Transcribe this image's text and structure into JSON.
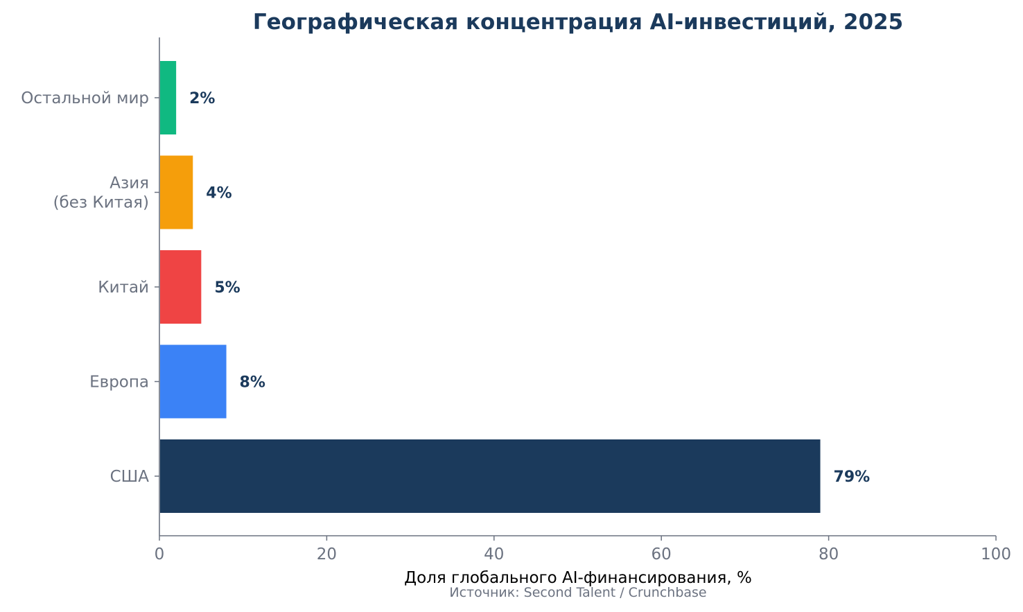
{
  "chart_data": {
    "type": "bar",
    "orientation": "horizontal",
    "title": "Географическая концентрация AI-инвестиций, 2025",
    "xlabel": "Доля глобального AI-финансирования, %",
    "ylabel": "",
    "source": "Источник: Second Talent / Crunchbase",
    "xlim": [
      0,
      100
    ],
    "xticks": [
      0,
      20,
      40,
      60,
      80,
      100
    ],
    "grid": false,
    "categories": [
      [
        "Остальной мир"
      ],
      [
        "Азия",
        "(без Китая)"
      ],
      [
        "Китай"
      ],
      [
        "Европа"
      ],
      [
        "США"
      ]
    ],
    "values": [
      2,
      4,
      5,
      8,
      79
    ],
    "value_labels": [
      "2%",
      "4%",
      "5%",
      "8%",
      "79%"
    ],
    "colors": [
      "#10b981",
      "#f59e0b",
      "#ef4444",
      "#3b82f6",
      "#1b3a5c"
    ]
  },
  "style": {
    "title_color": "#1b3a5c",
    "value_label_color": "#1b3a5c",
    "tick_label_color": "#6b7280",
    "axis_color": "#6b7280",
    "xlabel_color": "#000000",
    "source_color": "#6b7280"
  }
}
